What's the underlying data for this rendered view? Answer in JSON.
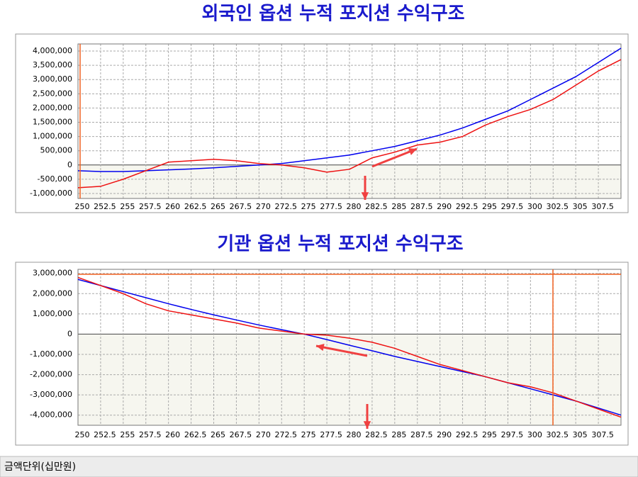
{
  "chart_data": [
    {
      "type": "line",
      "title": "외국인 옵션 누적 포지션 수익구조",
      "x": [
        250,
        252.5,
        255,
        257.5,
        260,
        262.5,
        265,
        267.5,
        270,
        272.5,
        275,
        277.5,
        280,
        282.5,
        285,
        287.5,
        290,
        292.5,
        295,
        297.5,
        300,
        302.5,
        305,
        307.5,
        310
      ],
      "series": [
        {
          "color": "#0000ee",
          "values": [
            -200000,
            -230000,
            -230000,
            -200000,
            -170000,
            -140000,
            -100000,
            -50000,
            0,
            50000,
            150000,
            250000,
            350000,
            500000,
            650000,
            850000,
            1050000,
            1300000,
            1600000,
            1900000,
            2300000,
            2700000,
            3100000,
            3600000,
            4100000
          ]
        },
        {
          "color": "#ee1111",
          "values": [
            -800000,
            -750000,
            -500000,
            -200000,
            100000,
            150000,
            200000,
            150000,
            50000,
            0,
            -100000,
            -250000,
            -150000,
            250000,
            450000,
            700000,
            800000,
            1000000,
            1400000,
            1700000,
            1950000,
            2300000,
            2800000,
            3300000,
            3700000
          ]
        }
      ],
      "xlim": [
        250,
        310
      ],
      "xticks": [
        250,
        252.5,
        255,
        257.5,
        260,
        262.5,
        265,
        267.5,
        270,
        272.5,
        275,
        277.5,
        280,
        282.5,
        285,
        287.5,
        290,
        292.5,
        295,
        297.5,
        300,
        302.5,
        305,
        307.5
      ],
      "ylim": [
        -1175000,
        4250000
      ],
      "yticks": [
        {
          "value": -1000000,
          "label": "-1,000,000"
        },
        {
          "value": -500000,
          "label": "-500,000"
        },
        0,
        {
          "value": 500000,
          "label": "500,000"
        },
        {
          "value": 1000000,
          "label": "1,000,000"
        },
        {
          "value": 1500000,
          "label": "1,500,000"
        },
        {
          "value": 2000000,
          "label": "2,000,000"
        },
        {
          "value": 2500000,
          "label": "2,500,000"
        },
        {
          "value": 3000000,
          "label": "3,000,000"
        },
        {
          "value": 3500000,
          "label": "3,500,000"
        },
        {
          "value": 4000000,
          "label": "4,000,000"
        }
      ],
      "grid": true
    },
    {
      "type": "line",
      "title": "기관 옵션 누적 포지션 수익구조",
      "x": [
        250,
        252.5,
        255,
        257.5,
        260,
        262.5,
        265,
        267.5,
        270,
        272.5,
        275,
        277.5,
        280,
        282.5,
        285,
        287.5,
        290,
        292.5,
        295,
        297.5,
        300,
        302.5,
        305,
        307.5,
        310
      ],
      "series": [
        {
          "color": "#0000ee",
          "values": [
            2700000,
            2400000,
            2100000,
            1800000,
            1500000,
            1220000,
            950000,
            700000,
            450000,
            220000,
            0,
            -270000,
            -550000,
            -820000,
            -1100000,
            -1350000,
            -1600000,
            -1850000,
            -2100000,
            -2400000,
            -2700000,
            -3000000,
            -3300000,
            -3650000,
            -4000000
          ]
        },
        {
          "color": "#ee1111",
          "values": [
            2800000,
            2400000,
            2000000,
            1500000,
            1150000,
            950000,
            750000,
            550000,
            300000,
            150000,
            0,
            -50000,
            -200000,
            -400000,
            -700000,
            -1100000,
            -1500000,
            -1800000,
            -2100000,
            -2400000,
            -2600000,
            -2900000,
            -3300000,
            -3700000,
            -4100000
          ]
        }
      ],
      "xlim": [
        250,
        310
      ],
      "xticks": [
        250,
        252.5,
        255,
        257.5,
        260,
        262.5,
        265,
        267.5,
        270,
        272.5,
        275,
        277.5,
        280,
        282.5,
        285,
        287.5,
        290,
        292.5,
        295,
        297.5,
        300,
        302.5,
        305,
        307.5
      ],
      "ylim": [
        -4500000,
        3200000
      ],
      "yticks": [
        {
          "value": -4000000,
          "label": "-4,000,000"
        },
        {
          "value": -3000000,
          "label": "-3,000,000"
        },
        {
          "value": -2000000,
          "label": "-2,000,000"
        },
        {
          "value": -1000000,
          "label": "-1,000,000"
        },
        0,
        {
          "value": 1000000,
          "label": "1,000,000"
        },
        {
          "value": 2000000,
          "label": "2,000,000"
        },
        {
          "value": 3000000,
          "label": "3,000,000"
        }
      ],
      "grid": true
    }
  ],
  "status_bar": "금액단위(십만원)"
}
